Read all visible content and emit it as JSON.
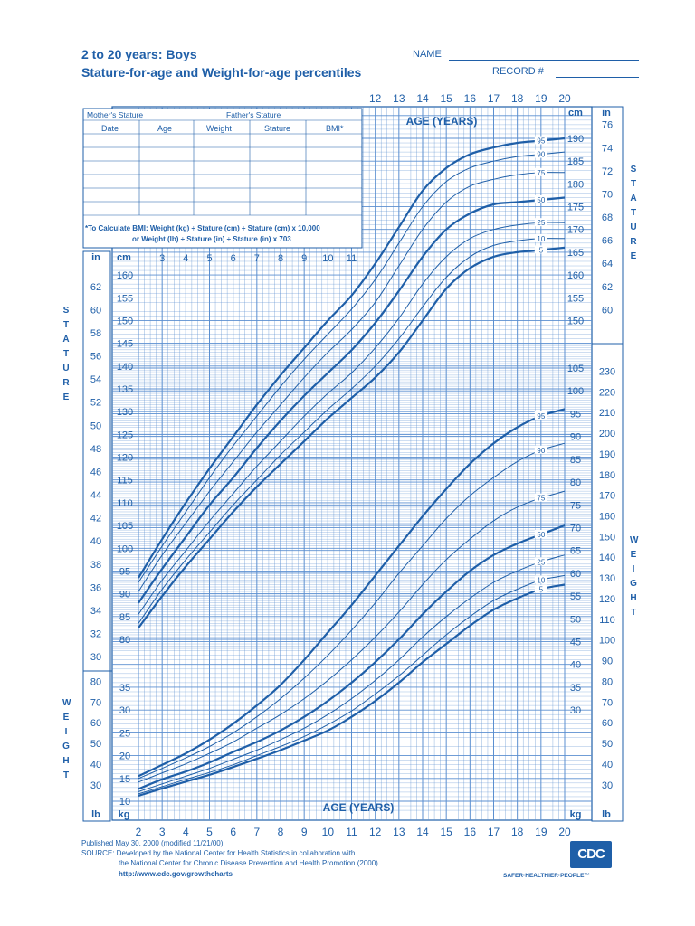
{
  "header": {
    "title_line1": "2 to 20 years: Boys",
    "title_line2": "Stature-for-age and Weight-for-age percentiles",
    "name_label": "NAME",
    "record_label": "RECORD #"
  },
  "record_table": {
    "mothers_stature": "Mother's Stature",
    "fathers_stature": "Father's Stature",
    "columns": [
      "Date",
      "Age",
      "Weight",
      "Stature",
      "BMI*"
    ],
    "bmi_note_1": "*To Calculate BMI: Weight (kg) ÷ Stature (cm) ÷ Stature (cm) x 10,000",
    "bmi_note_2": "or Weight (lb) ÷ Stature (in) ÷ Stature (in) x 703"
  },
  "side_labels": {
    "stature": "STATURE",
    "weight": "WEIGHT"
  },
  "footer": {
    "line1": "Published May 30, 2000 (modified 11/21/00).",
    "line2": "SOURCE: Developed by the National Center for Health Statistics in collaboration with",
    "line3": "the National Center for Chronic Disease Prevention and Health Promotion (2000).",
    "line4": "http://www.cdc.gov/growthcharts",
    "logo": "CDC",
    "tagline": "SAFER·HEALTHIER·PEOPLE™"
  },
  "colors": {
    "ink": "#1f5fa8",
    "grid": "#5b8fd0"
  },
  "chart_data": [
    {
      "type": "line",
      "title": "Stature-for-age percentiles",
      "xlabel": "AGE (YEARS)",
      "ylabel": "STATURE",
      "x_ticks": [
        2,
        3,
        4,
        5,
        6,
        7,
        8,
        9,
        10,
        11,
        12,
        13,
        14,
        15,
        16,
        17,
        18,
        19,
        20
      ],
      "xlim": [
        2,
        20
      ],
      "ylim_cm": [
        77,
        195
      ],
      "y_ticks_cm": [
        80,
        85,
        90,
        95,
        100,
        105,
        110,
        115,
        120,
        125,
        130,
        135,
        140,
        145,
        150,
        155,
        160,
        165,
        170,
        175,
        180,
        185,
        190
      ],
      "y_ticks_in": [
        30,
        32,
        34,
        36,
        38,
        40,
        42,
        44,
        46,
        48,
        50,
        52,
        54,
        56,
        58,
        60,
        62,
        64,
        66,
        68,
        70,
        72,
        74,
        76
      ],
      "units": [
        "cm",
        "in"
      ],
      "x": [
        2,
        3,
        4,
        5,
        6,
        7,
        8,
        9,
        10,
        11,
        12,
        13,
        14,
        15,
        16,
        17,
        18,
        19,
        20
      ],
      "series": [
        {
          "name": "95",
          "values": [
            93.5,
            102,
            110,
            117.5,
            124.5,
            131.5,
            138,
            144,
            150,
            155.5,
            162.5,
            170.5,
            178.5,
            183.5,
            186.5,
            188,
            189,
            189.5,
            190
          ]
        },
        {
          "name": "90",
          "values": [
            92.5,
            100.5,
            108,
            115.5,
            122.5,
            129,
            135.5,
            141.5,
            147,
            152.5,
            159,
            167,
            175,
            180.5,
            183.5,
            185,
            186,
            186.5,
            187
          ]
        },
        {
          "name": "75",
          "values": [
            90.5,
            98.5,
            105.5,
            112.5,
            119,
            125.5,
            131.5,
            137.5,
            143,
            148,
            154,
            162,
            170,
            176,
            179.5,
            181,
            182,
            182.5,
            182.5
          ]
        },
        {
          "name": "50",
          "values": [
            88,
            95.5,
            102.5,
            109.5,
            115.5,
            122,
            128,
            133.5,
            138.5,
            143.5,
            149.5,
            156.5,
            164,
            170,
            173.5,
            175.5,
            176,
            176.5,
            177
          ]
        },
        {
          "name": "25",
          "values": [
            85.5,
            93,
            99.5,
            106,
            112,
            118,
            123.5,
            129,
            134,
            138.5,
            144,
            150.5,
            158,
            164,
            168,
            170,
            171,
            171.5,
            171.5
          ]
        },
        {
          "name": "10",
          "values": [
            83.5,
            91,
            97.5,
            103.5,
            109.5,
            115,
            120.5,
            125.5,
            130.5,
            135,
            140,
            146,
            153,
            159.5,
            164,
            166.5,
            167.5,
            168,
            168
          ]
        },
        {
          "name": "5",
          "values": [
            82.5,
            89.5,
            96,
            102,
            108,
            113.5,
            118.5,
            123.5,
            128.5,
            133,
            137.5,
            143,
            150,
            157,
            161.5,
            164,
            165,
            165.5,
            166
          ]
        }
      ]
    },
    {
      "type": "line",
      "title": "Weight-for-age percentiles",
      "xlabel": "AGE (YEARS)",
      "ylabel": "WEIGHT",
      "x_ticks": [
        2,
        3,
        4,
        5,
        6,
        7,
        8,
        9,
        10,
        11,
        12,
        13,
        14,
        15,
        16,
        17,
        18,
        19,
        20
      ],
      "xlim": [
        2,
        20
      ],
      "ylim_kg": [
        8,
        110
      ],
      "y_ticks_kg": [
        10,
        15,
        20,
        25,
        30,
        35,
        40,
        45,
        50,
        55,
        60,
        65,
        70,
        75,
        80,
        85,
        90,
        95,
        100,
        105
      ],
      "y_ticks_lb": [
        30,
        40,
        50,
        60,
        70,
        80,
        90,
        100,
        110,
        120,
        130,
        140,
        150,
        160,
        170,
        180,
        190,
        200,
        210,
        220,
        230
      ],
      "units": [
        "kg",
        "lb"
      ],
      "x": [
        2,
        3,
        4,
        5,
        6,
        7,
        8,
        9,
        10,
        11,
        12,
        13,
        14,
        15,
        16,
        17,
        18,
        19,
        20
      ],
      "series": [
        {
          "name": "95",
          "values": [
            15.5,
            18,
            20.5,
            23.5,
            27,
            31,
            35.5,
            41,
            47,
            53,
            59.5,
            66,
            72.5,
            78.5,
            84,
            88.5,
            92,
            94.5,
            96
          ]
        },
        {
          "name": "90",
          "values": [
            15,
            17.2,
            19.5,
            22,
            25,
            28.5,
            32.5,
            37,
            42,
            47.5,
            53.5,
            60,
            66,
            72,
            77,
            81,
            84.5,
            87,
            88.5
          ]
        },
        {
          "name": "75",
          "values": [
            14.2,
            16.2,
            18.2,
            20.5,
            23,
            26,
            29,
            32.5,
            36.5,
            41,
            46,
            51.5,
            57.5,
            63,
            67.5,
            71.5,
            74.5,
            76.5,
            78
          ]
        },
        {
          "name": "50",
          "values": [
            12.7,
            14.8,
            16.5,
            18.5,
            20.8,
            23,
            25.5,
            28.5,
            32,
            36,
            40.5,
            45.5,
            51,
            56,
            60.5,
            64,
            66.5,
            68.5,
            70.5
          ]
        },
        {
          "name": "25",
          "values": [
            12.1,
            13.8,
            15.5,
            17.2,
            19.2,
            21.2,
            23.5,
            26,
            29,
            32.5,
            36.5,
            41,
            46,
            50.5,
            54.5,
            58,
            60.5,
            62.5,
            64
          ]
        },
        {
          "name": "10",
          "values": [
            11.6,
            13.2,
            14.8,
            16.3,
            18,
            20,
            22,
            24.2,
            26.8,
            29.8,
            33.5,
            37.5,
            42,
            46.5,
            50.5,
            54,
            56.5,
            58.5,
            59.5
          ]
        },
        {
          "name": "5",
          "values": [
            11.2,
            12.8,
            14.3,
            15.8,
            17.5,
            19.3,
            21.2,
            23.3,
            25.5,
            28.5,
            32,
            36,
            40.5,
            44.5,
            48.5,
            52,
            54.5,
            56.5,
            57.5
          ]
        }
      ]
    }
  ]
}
